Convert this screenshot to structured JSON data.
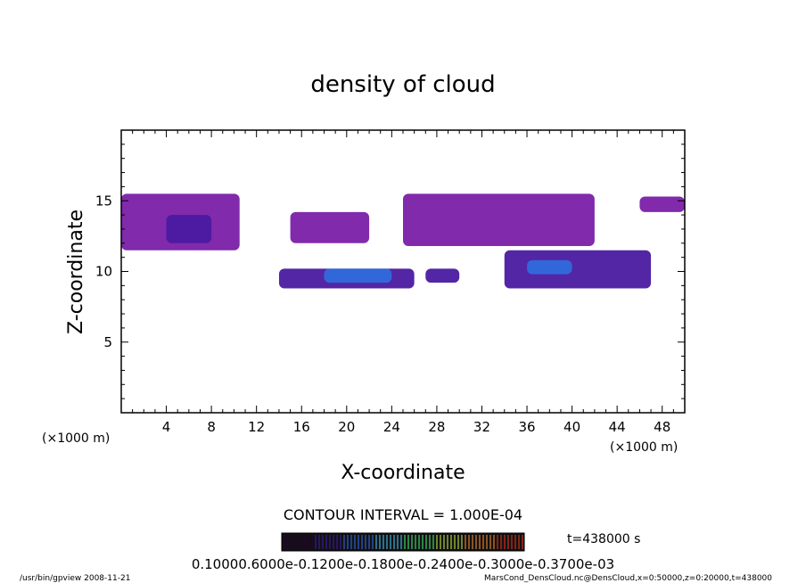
{
  "chart_data": {
    "type": "heatmap",
    "title": "density of cloud",
    "xlabel": "X-coordinate",
    "ylabel": "Z-coordinate",
    "x_unit": "(×1000 m)",
    "y_unit": "(×1000 m)",
    "xlim": [
      0,
      50
    ],
    "ylim": [
      0,
      20
    ],
    "x_ticks": [
      4,
      8,
      12,
      16,
      20,
      24,
      28,
      32,
      36,
      40,
      44,
      48
    ],
    "y_ticks": [
      5,
      10,
      15
    ],
    "contour_interval": "CONTOUR INTERVAL = 1.000E-04",
    "time_label": "t=438000 s",
    "colorbar_labels": [
      "0.1000",
      "0.6000e-05",
      "0.1200e-03",
      "0.1800e-03",
      "0.2400e-03",
      "0.3000e-03",
      "0.3700e-03"
    ],
    "colorbar_label_text": "0.10000.6000e-0.1200e-0.1800e-0.2400e-0.3000e-0.3700e-03",
    "colorbar_colors": [
      "#2a003a",
      "#3a1a9a",
      "#3060d0",
      "#40b0e0",
      "#40d070",
      "#b0d040",
      "#e08030",
      "#d03020"
    ],
    "cloud_regions": [
      {
        "x": [
          0,
          10.5
        ],
        "z": [
          11.5,
          15.5
        ],
        "level": "low"
      },
      {
        "x": [
          4,
          8
        ],
        "z": [
          12.0,
          14.0
        ],
        "level": "mid"
      },
      {
        "x": [
          14,
          26
        ],
        "z": [
          8.8,
          10.2
        ],
        "level": "mid"
      },
      {
        "x": [
          18,
          24
        ],
        "z": [
          9.2,
          10.2
        ],
        "level": "high"
      },
      {
        "x": [
          27,
          30
        ],
        "z": [
          9.2,
          10.2
        ],
        "level": "mid"
      },
      {
        "x": [
          34,
          47
        ],
        "z": [
          8.8,
          11.5
        ],
        "level": "mid"
      },
      {
        "x": [
          36,
          40
        ],
        "z": [
          9.8,
          10.8
        ],
        "level": "high"
      },
      {
        "x": [
          15,
          22
        ],
        "z": [
          12.0,
          14.2
        ],
        "level": "low"
      },
      {
        "x": [
          25,
          42
        ],
        "z": [
          11.8,
          15.5
        ],
        "level": "low"
      },
      {
        "x": [
          46,
          50
        ],
        "z": [
          14.2,
          15.3
        ],
        "level": "low"
      }
    ],
    "footer_left": "/usr/bin/gpview   2008-11-21",
    "footer_right": "MarsCond_DensCloud.nc@DensCloud,x=0:50000,z=0:20000,t=438000"
  }
}
